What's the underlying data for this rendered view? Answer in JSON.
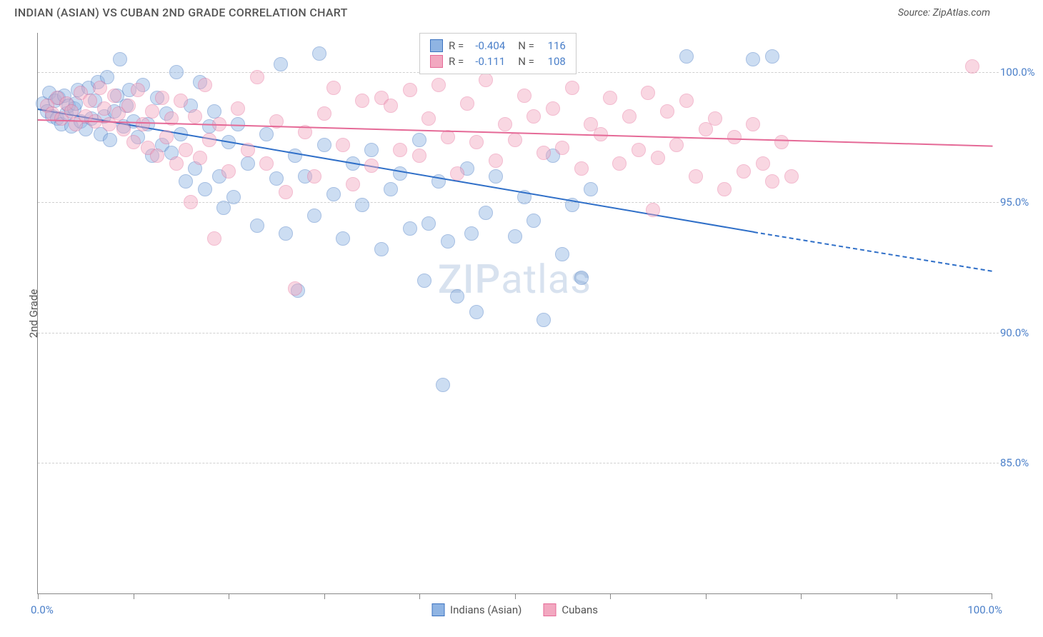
{
  "header": {
    "title": "INDIAN (ASIAN) VS CUBAN 2ND GRADE CORRELATION CHART",
    "source": "Source: ZipAtlas.com"
  },
  "watermark": {
    "zip": "ZIP",
    "atlas": "atlas"
  },
  "chart": {
    "type": "scatter",
    "y_axis_label": "2nd Grade",
    "x_min": 0,
    "x_max": 100,
    "y_min": 80,
    "y_max": 101.5,
    "x_label_start": "0.0%",
    "x_label_end": "100.0%",
    "y_ticks": [
      {
        "value": 85,
        "label": "85.0%"
      },
      {
        "value": 90,
        "label": "90.0%"
      },
      {
        "value": 95,
        "label": "95.0%"
      },
      {
        "value": 100,
        "label": "100.0%"
      }
    ],
    "x_tick_positions": [
      0,
      10,
      20,
      30,
      40,
      50,
      60,
      70,
      80,
      90,
      100
    ],
    "background_color": "#ffffff",
    "grid_color": "#d0d0d0",
    "marker_radius": 10,
    "marker_opacity": 0.45,
    "series": [
      {
        "name": "Indians (Asian)",
        "fill_color": "#8fb4e3",
        "stroke_color": "#3b72c0",
        "trend_color": "#2f6fc8",
        "R_label": "R =",
        "R": "-0.404",
        "N_label": "N =",
        "N": "116",
        "trend": {
          "x1": 0,
          "y1": 98.6,
          "x2": 75,
          "y2": 93.9,
          "x2_dash": 100,
          "y2_dash": 92.4
        },
        "points": [
          [
            0.5,
            98.8
          ],
          [
            1,
            98.5
          ],
          [
            1.2,
            99.2
          ],
          [
            1.5,
            98.3
          ],
          [
            1.8,
            98.9
          ],
          [
            2,
            98.2
          ],
          [
            2.2,
            99.0
          ],
          [
            2.5,
            98.0
          ],
          [
            2.8,
            99.1
          ],
          [
            3,
            98.4
          ],
          [
            3.2,
            98.7
          ],
          [
            3.5,
            97.9
          ],
          [
            3.8,
            98.6
          ],
          [
            4,
            98.8
          ],
          [
            4.2,
            99.3
          ],
          [
            4.5,
            98.1
          ],
          [
            5,
            97.8
          ],
          [
            5.3,
            99.4
          ],
          [
            5.6,
            98.2
          ],
          [
            6,
            98.9
          ],
          [
            6.3,
            99.6
          ],
          [
            6.6,
            97.6
          ],
          [
            7,
            98.3
          ],
          [
            7.3,
            99.8
          ],
          [
            7.6,
            97.4
          ],
          [
            8,
            98.5
          ],
          [
            8.3,
            99.1
          ],
          [
            8.6,
            100.5
          ],
          [
            9,
            97.9
          ],
          [
            9.3,
            98.7
          ],
          [
            9.6,
            99.3
          ],
          [
            10,
            98.1
          ],
          [
            10.5,
            97.5
          ],
          [
            11,
            99.5
          ],
          [
            11.5,
            98.0
          ],
          [
            12,
            96.8
          ],
          [
            12.5,
            99.0
          ],
          [
            13,
            97.2
          ],
          [
            13.5,
            98.4
          ],
          [
            14,
            96.9
          ],
          [
            14.5,
            100
          ],
          [
            15,
            97.6
          ],
          [
            15.5,
            95.8
          ],
          [
            16,
            98.7
          ],
          [
            16.5,
            96.3
          ],
          [
            17,
            99.6
          ],
          [
            17.5,
            95.5
          ],
          [
            18,
            97.9
          ],
          [
            18.5,
            98.5
          ],
          [
            19,
            96.0
          ],
          [
            19.5,
            94.8
          ],
          [
            20,
            97.3
          ],
          [
            20.5,
            95.2
          ],
          [
            21,
            98.0
          ],
          [
            22,
            96.5
          ],
          [
            23,
            94.1
          ],
          [
            24,
            97.6
          ],
          [
            25,
            95.9
          ],
          [
            25.5,
            100.3
          ],
          [
            26,
            93.8
          ],
          [
            27,
            96.8
          ],
          [
            27.3,
            91.6
          ],
          [
            28,
            96.0
          ],
          [
            29,
            94.5
          ],
          [
            29.5,
            100.7
          ],
          [
            30,
            97.2
          ],
          [
            31,
            95.3
          ],
          [
            32,
            93.6
          ],
          [
            33,
            96.5
          ],
          [
            34,
            94.9
          ],
          [
            35,
            97.0
          ],
          [
            36,
            93.2
          ],
          [
            37,
            95.5
          ],
          [
            38,
            96.1
          ],
          [
            39,
            94.0
          ],
          [
            40,
            97.4
          ],
          [
            40.5,
            92.0
          ],
          [
            41,
            94.2
          ],
          [
            42,
            95.8
          ],
          [
            42.5,
            88.0
          ],
          [
            43,
            93.5
          ],
          [
            44,
            91.4
          ],
          [
            45,
            96.3
          ],
          [
            45.5,
            93.8
          ],
          [
            46,
            90.8
          ],
          [
            47,
            94.6
          ],
          [
            48,
            96.0
          ],
          [
            50,
            93.7
          ],
          [
            51,
            95.2
          ],
          [
            52,
            94.3
          ],
          [
            53,
            90.5
          ],
          [
            54,
            96.8
          ],
          [
            55,
            93.0
          ],
          [
            56,
            94.9
          ],
          [
            57,
            92.1
          ],
          [
            58,
            95.5
          ],
          [
            68,
            100.6
          ],
          [
            75,
            100.5
          ],
          [
            77,
            100.6
          ]
        ]
      },
      {
        "name": "Cubans",
        "fill_color": "#f2a8c0",
        "stroke_color": "#e56a97",
        "trend_color": "#e56a97",
        "R_label": "R =",
        "R": "-0.111",
        "N_label": "N =",
        "N": "108",
        "trend": {
          "x1": 0,
          "y1": 98.2,
          "x2": 100,
          "y2": 97.2,
          "x2_dash": 100,
          "y2_dash": 97.2
        },
        "points": [
          [
            1,
            98.7
          ],
          [
            1.5,
            98.4
          ],
          [
            2,
            99.0
          ],
          [
            2.5,
            98.2
          ],
          [
            3,
            98.8
          ],
          [
            3.5,
            98.5
          ],
          [
            4,
            98.0
          ],
          [
            4.5,
            99.2
          ],
          [
            5,
            98.3
          ],
          [
            5.5,
            98.9
          ],
          [
            6,
            98.1
          ],
          [
            6.5,
            99.4
          ],
          [
            7,
            98.6
          ],
          [
            7.5,
            98.0
          ],
          [
            8,
            99.1
          ],
          [
            8.5,
            98.4
          ],
          [
            9,
            97.8
          ],
          [
            9.5,
            98.7
          ],
          [
            10,
            97.3
          ],
          [
            10.5,
            99.3
          ],
          [
            11,
            98.0
          ],
          [
            11.5,
            97.1
          ],
          [
            12,
            98.5
          ],
          [
            12.5,
            96.8
          ],
          [
            13,
            99.0
          ],
          [
            13.5,
            97.5
          ],
          [
            14,
            98.2
          ],
          [
            14.5,
            96.5
          ],
          [
            15,
            98.9
          ],
          [
            15.5,
            97.0
          ],
          [
            16,
            95.0
          ],
          [
            16.5,
            98.3
          ],
          [
            17,
            96.7
          ],
          [
            17.5,
            99.5
          ],
          [
            18,
            97.4
          ],
          [
            18.5,
            93.6
          ],
          [
            19,
            98.0
          ],
          [
            20,
            96.2
          ],
          [
            21,
            98.6
          ],
          [
            22,
            97.0
          ],
          [
            23,
            99.8
          ],
          [
            24,
            96.5
          ],
          [
            25,
            98.1
          ],
          [
            26,
            95.4
          ],
          [
            27,
            91.7
          ],
          [
            28,
            97.7
          ],
          [
            29,
            96.0
          ],
          [
            30,
            98.4
          ],
          [
            31,
            99.4
          ],
          [
            32,
            97.2
          ],
          [
            33,
            95.7
          ],
          [
            34,
            98.9
          ],
          [
            35,
            96.4
          ],
          [
            36,
            99.0
          ],
          [
            37,
            98.7
          ],
          [
            38,
            97.0
          ],
          [
            39,
            99.3
          ],
          [
            40,
            96.8
          ],
          [
            41,
            98.2
          ],
          [
            42,
            99.5
          ],
          [
            43,
            97.5
          ],
          [
            44,
            96.1
          ],
          [
            45,
            98.8
          ],
          [
            46,
            97.3
          ],
          [
            47,
            99.7
          ],
          [
            48,
            96.6
          ],
          [
            49,
            98.0
          ],
          [
            50,
            97.4
          ],
          [
            51,
            99.1
          ],
          [
            52,
            98.3
          ],
          [
            53,
            96.9
          ],
          [
            54,
            98.6
          ],
          [
            55,
            97.1
          ],
          [
            56,
            99.4
          ],
          [
            57,
            96.3
          ],
          [
            58,
            98.0
          ],
          [
            59,
            97.6
          ],
          [
            60,
            99.0
          ],
          [
            61,
            96.5
          ],
          [
            62,
            98.3
          ],
          [
            63,
            97.0
          ],
          [
            64,
            99.2
          ],
          [
            64.5,
            94.7
          ],
          [
            65,
            96.7
          ],
          [
            66,
            98.5
          ],
          [
            67,
            97.2
          ],
          [
            68,
            98.9
          ],
          [
            69,
            96.0
          ],
          [
            70,
            97.8
          ],
          [
            71,
            98.2
          ],
          [
            72,
            95.5
          ],
          [
            73,
            97.5
          ],
          [
            74,
            96.2
          ],
          [
            75,
            98.0
          ],
          [
            76,
            96.5
          ],
          [
            77,
            95.8
          ],
          [
            78,
            97.3
          ],
          [
            79,
            96.0
          ],
          [
            98,
            100.2
          ]
        ]
      }
    ],
    "bottom_legend": [
      {
        "swatch_fill": "#8fb4e3",
        "swatch_stroke": "#3b72c0",
        "label": "Indians (Asian)"
      },
      {
        "swatch_fill": "#f2a8c0",
        "swatch_stroke": "#e56a97",
        "label": "Cubans"
      }
    ]
  }
}
